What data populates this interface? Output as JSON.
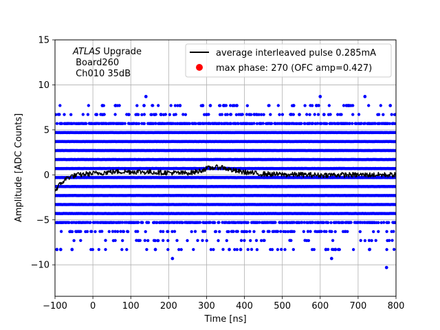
{
  "chart_data": {
    "type": "scatter",
    "xlabel": "Time [ns]",
    "ylabel": "Amplitude [ADC Counts]",
    "xlim": [
      -100,
      800
    ],
    "ylim": [
      -13.5,
      15
    ],
    "xticks": [
      -100,
      0,
      100,
      200,
      300,
      400,
      500,
      600,
      700,
      800
    ],
    "yticks": [
      -10,
      -5,
      0,
      5,
      10,
      15
    ],
    "grid": true,
    "legend_position": "upper right",
    "annotation": {
      "italic": "ATLAS",
      "rest": " Upgrade",
      "line2": " Board260",
      "line3": " Ch010 35dB"
    },
    "scatter_band_levels": [
      -8.3,
      -7.3,
      -6.3,
      -5.3,
      -4.3,
      -3.3,
      -2.3,
      -1.3,
      -0.3,
      0.7,
      1.7,
      2.7,
      3.7,
      4.7,
      5.7,
      6.7,
      7.7
    ],
    "scatter_outliers": [
      {
        "x": 140,
        "y": 8.7
      },
      {
        "x": 600,
        "y": 8.7
      },
      {
        "x": 718,
        "y": 8.7
      },
      {
        "x": 25,
        "y": 7.7
      },
      {
        "x": 60,
        "y": 7.7
      },
      {
        "x": 135,
        "y": 7.7
      },
      {
        "x": 230,
        "y": 7.7
      },
      {
        "x": 290,
        "y": 7.7
      },
      {
        "x": 310,
        "y": 7.7
      },
      {
        "x": 345,
        "y": 7.7
      },
      {
        "x": 380,
        "y": 7.7
      },
      {
        "x": 530,
        "y": 7.7
      },
      {
        "x": 590,
        "y": 7.7
      },
      {
        "x": 675,
        "y": 7.7
      },
      {
        "x": 785,
        "y": 7.7
      },
      {
        "x": 10,
        "y": 6.7
      },
      {
        "x": 95,
        "y": 6.7
      },
      {
        "x": 180,
        "y": 6.7
      },
      {
        "x": 300,
        "y": 6.7
      },
      {
        "x": 545,
        "y": 6.7
      },
      {
        "x": 610,
        "y": 6.7
      },
      {
        "x": 210,
        "y": -9.3
      },
      {
        "x": 630,
        "y": -9.3
      },
      {
        "x": 775,
        "y": -10.3
      },
      {
        "x": -95,
        "y": -8.3
      },
      {
        "x": -85,
        "y": -8.3
      },
      {
        "x": -55,
        "y": -8.3
      },
      {
        "x": 165,
        "y": -8.3
      },
      {
        "x": 390,
        "y": -8.3
      },
      {
        "x": 615,
        "y": -8.3
      },
      {
        "x": 640,
        "y": -8.3
      },
      {
        "x": 360,
        "y": -8.3
      },
      {
        "x": 730,
        "y": -8.3
      }
    ],
    "series": [
      {
        "name": "average interleaved pulse 0.285mA",
        "type": "line",
        "color": "#000000",
        "x": [
          -100,
          -90,
          -80,
          -70,
          -60,
          -50,
          -40,
          -30,
          -20,
          -10,
          0,
          20,
          40,
          60,
          80,
          100,
          120,
          140,
          160,
          180,
          200,
          220,
          240,
          260,
          280,
          300,
          320,
          340,
          360,
          380,
          400,
          420,
          440,
          460,
          480,
          500,
          520,
          540,
          560,
          580,
          600,
          620,
          640,
          660,
          680,
          700,
          720,
          740,
          760,
          780,
          800
        ],
        "y": [
          -1.8,
          -1.2,
          -0.8,
          -0.4,
          -0.2,
          -0.1,
          0.0,
          0.0,
          0.1,
          0.1,
          0.15,
          0.2,
          0.3,
          0.35,
          0.35,
          0.35,
          0.35,
          0.3,
          0.3,
          0.25,
          0.25,
          0.2,
          0.2,
          0.25,
          0.4,
          0.7,
          0.8,
          0.85,
          0.6,
          0.4,
          0.3,
          0.2,
          0.1,
          0.1,
          0.05,
          0.05,
          0.0,
          0.05,
          0.0,
          0.0,
          -0.05,
          0.0,
          0.0,
          0.0,
          0.0,
          0.0,
          0.0,
          0.0,
          0.0,
          0.0,
          0.0
        ]
      },
      {
        "name": "max phase: 270 (OFC amp=0.427)",
        "type": "point",
        "color": "#ff0000"
      },
      {
        "name": "samples",
        "type": "scatter",
        "color": "#0000ff"
      }
    ]
  },
  "colors": {
    "samples": "#0000ff",
    "avg_line": "#000000",
    "max_phase": "#ff0000",
    "grid": "#b0b0b0"
  }
}
